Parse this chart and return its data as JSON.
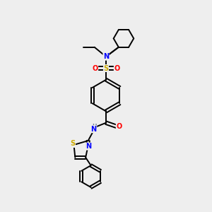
{
  "bg_color": "#eeeeee",
  "bond_color": "#000000",
  "atom_colors": {
    "N": "#0000ff",
    "O": "#ff0000",
    "S": "#ccaa00",
    "H": "#708090"
  },
  "figsize": [
    3.0,
    3.0
  ],
  "dpi": 100
}
